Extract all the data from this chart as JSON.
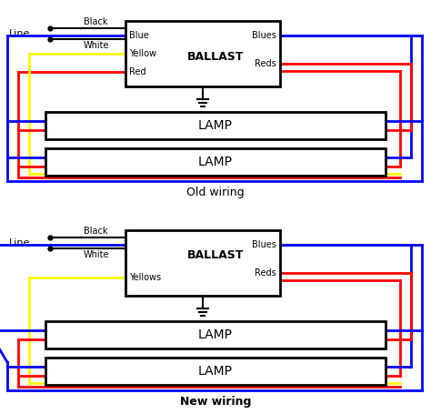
{
  "bg_color": "#ffffff",
  "blue": "#0000ff",
  "red": "#ff0000",
  "yellow": "#ffff00",
  "black": "#000000",
  "lw": 2.0,
  "diagrams": [
    {
      "title": "Old wiring",
      "title_bold": false,
      "left_labels": [
        "Blue",
        "Yellow",
        "Red"
      ],
      "right_labels": [
        "Blues",
        "Reds"
      ],
      "is_new": false
    },
    {
      "title": "New wiring",
      "title_bold": true,
      "left_labels": [
        "Yellows"
      ],
      "right_labels": [
        "Blues",
        "Reds"
      ],
      "is_new": true
    }
  ]
}
